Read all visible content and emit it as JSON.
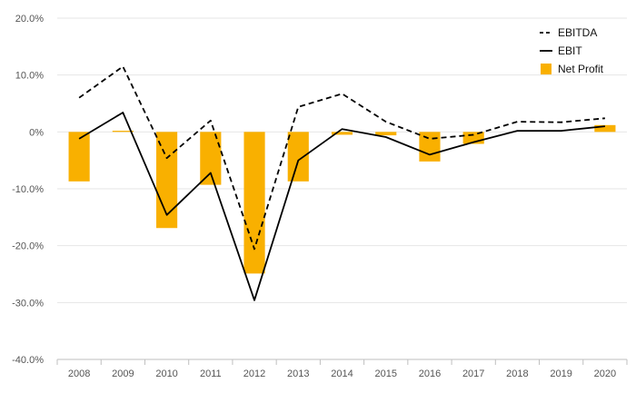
{
  "chart_data": {
    "type": "bar",
    "categories": [
      "2008",
      "2009",
      "2010",
      "2011",
      "2012",
      "2013",
      "2014",
      "2015",
      "2016",
      "2017",
      "2018",
      "2019",
      "2020"
    ],
    "ylim": [
      -40,
      20
    ],
    "yticks": [
      20,
      10,
      0,
      -10,
      -20,
      -30,
      -40
    ],
    "ytick_labels": [
      "20.0%",
      "10.0%",
      "0%",
      "-10.0%",
      "-20.0%",
      "-30.0%",
      "-40.0%"
    ],
    "grid": true,
    "legend_position": "top-right",
    "series": [
      {
        "name": "EBITDA",
        "type": "line",
        "style": "dashed",
        "color": "#000000",
        "values": [
          6.0,
          11.5,
          -4.6,
          2.0,
          -20.6,
          4.4,
          6.7,
          1.8,
          -1.2,
          -0.5,
          1.8,
          1.7,
          2.4
        ]
      },
      {
        "name": "EBIT",
        "type": "line",
        "style": "solid",
        "color": "#000000",
        "values": [
          -1.2,
          3.4,
          -14.6,
          -7.2,
          -29.6,
          -5.0,
          0.5,
          -0.9,
          -4.0,
          -1.8,
          0.2,
          0.2,
          1.0
        ]
      },
      {
        "name": "Net Profit",
        "type": "bar",
        "color": "#F9B000",
        "values": [
          -8.7,
          0.2,
          -16.9,
          -9.3,
          -24.9,
          -8.7,
          -0.5,
          -0.6,
          -5.2,
          -2.1,
          0.0,
          0.0,
          1.2
        ]
      }
    ]
  }
}
